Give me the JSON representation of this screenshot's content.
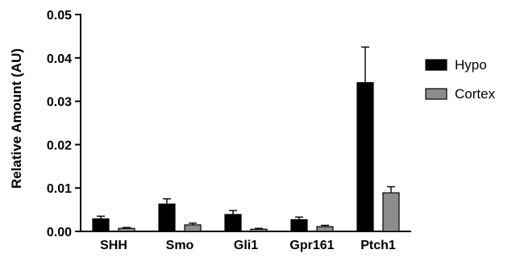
{
  "chart_data": {
    "type": "bar",
    "categories": [
      "SHH",
      "Smo",
      "Gli1",
      "Gpr161",
      "Ptch1"
    ],
    "series": [
      {
        "name": "Hypo",
        "color": "#000000",
        "values": [
          0.0029,
          0.0063,
          0.0039,
          0.0027,
          0.0343
        ],
        "errors": [
          0.0006,
          0.0012,
          0.0009,
          0.0006,
          0.0082
        ]
      },
      {
        "name": "Cortex",
        "color": "#8c8c8c",
        "values": [
          0.0007,
          0.0015,
          0.0005,
          0.0011,
          0.0089
        ],
        "errors": [
          0.0002,
          0.0004,
          0.0002,
          0.0003,
          0.0014
        ]
      }
    ],
    "ylabel": "Relative Amount (AU)",
    "xlabel": "",
    "ylim": [
      0,
      0.05
    ],
    "yticks": [
      "0.00",
      "0.01",
      "0.02",
      "0.03",
      "0.04",
      "0.05"
    ],
    "grid": false,
    "legend_position": "right"
  }
}
